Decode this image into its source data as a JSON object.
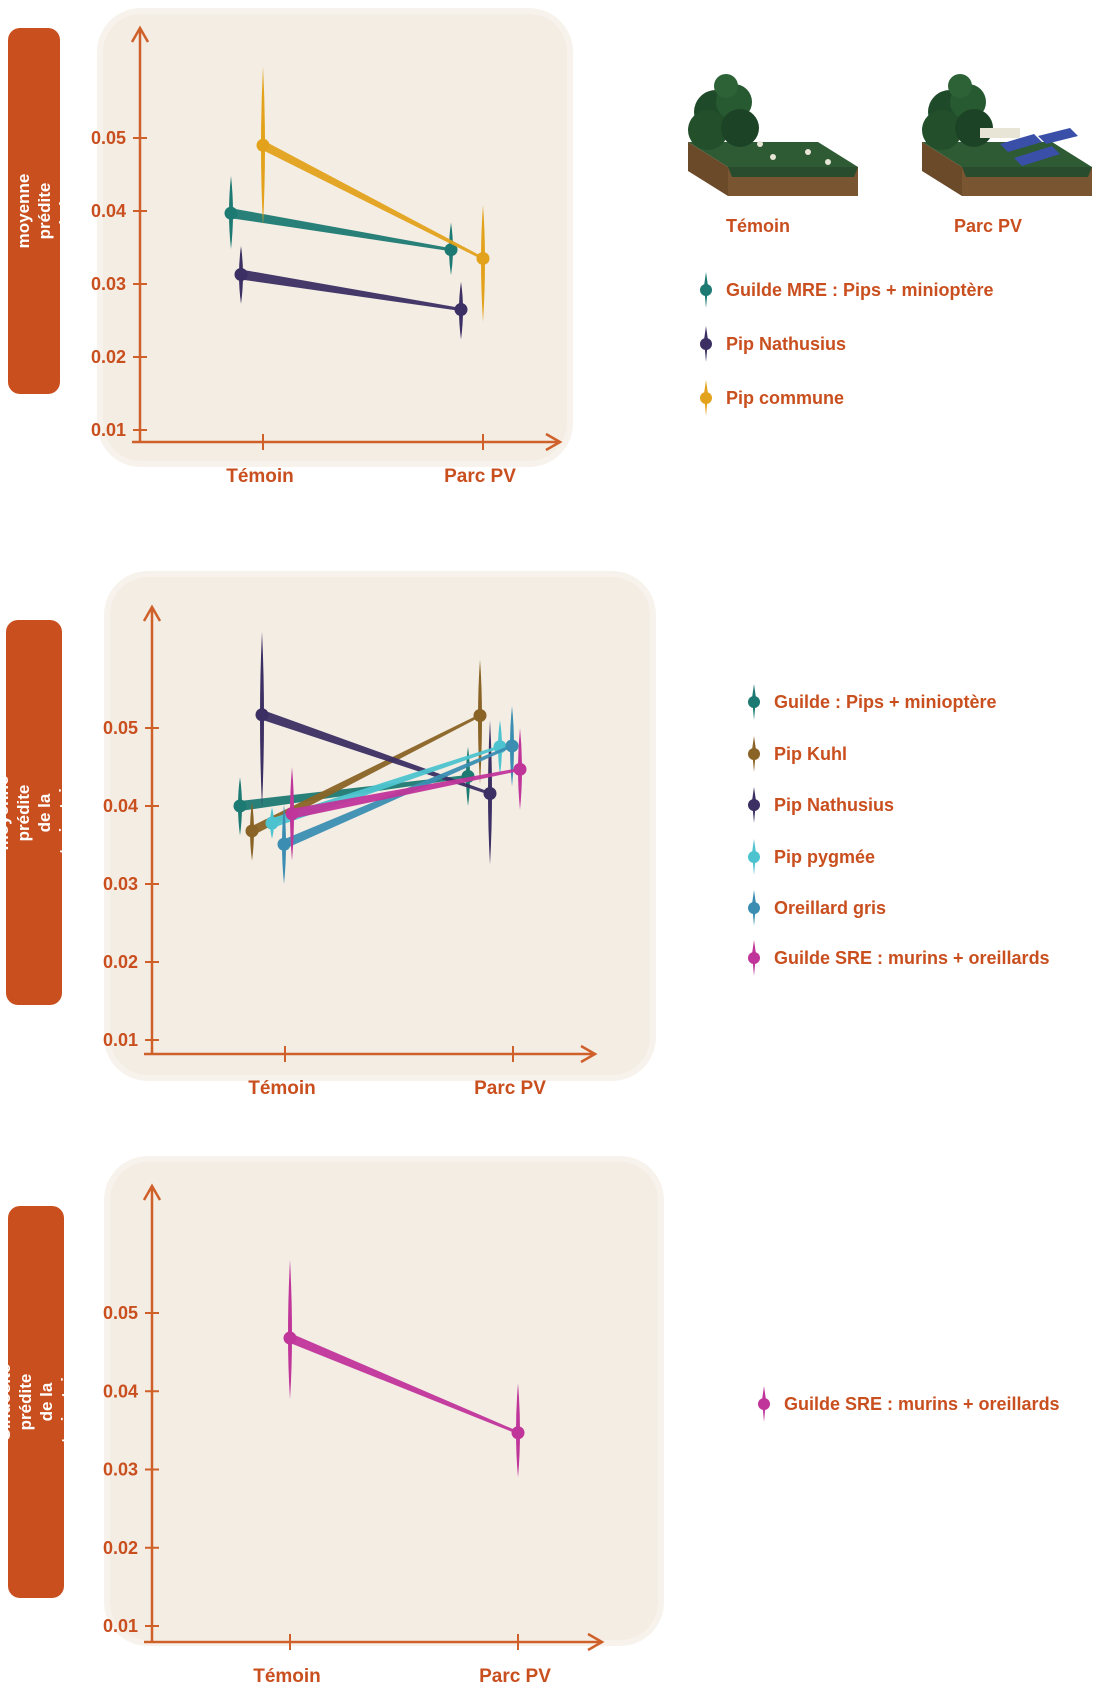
{
  "scenes": {
    "control_label": "Témoin",
    "pv_label": "Parc PV"
  },
  "chart_data": [
    {
      "type": "line",
      "ylabel": "Probabilité de buzz moyenne prédite\nde la trajectoire",
      "categories": [
        "Témoin",
        "Parc PV"
      ],
      "yticks": [
        "0.01",
        "0.02",
        "0.03",
        "0.04",
        "0.05"
      ],
      "ylim": [
        0.01,
        0.05
      ],
      "series": [
        {
          "name": "Guilde MRE : Pips + minioptère",
          "color": "#1c7a72",
          "values": [
            0.0397,
            0.0347
          ],
          "low": [
            0.0348,
            0.0312
          ],
          "high": [
            0.0448,
            0.0384
          ]
        },
        {
          "name": "Pip Nathusius",
          "color": "#3b2f63",
          "values": [
            0.0313,
            0.0265
          ],
          "low": [
            0.0273,
            0.0224
          ],
          "high": [
            0.0352,
            0.0303
          ]
        },
        {
          "name": "Pip commune",
          "color": "#e3a21b",
          "values": [
            0.049,
            0.0335
          ],
          "low": [
            0.038,
            0.0248
          ],
          "high": [
            0.0598,
            0.0408
          ]
        }
      ]
    },
    {
      "type": "line",
      "ylabel": "Vitesse moyenne prédite\nde la trajectoire (m/s)",
      "categories": [
        "Témoin",
        "Parc PV"
      ],
      "yticks": [
        "0.01",
        "0.02",
        "0.03",
        "0.04",
        "0.05"
      ],
      "ylim": [
        0.01,
        0.05
      ],
      "series": [
        {
          "name": "Guilde : Pips + minioptère",
          "color": "#1c7a72",
          "values": [
            0.04,
            0.0438
          ],
          "low": [
            0.0362,
            0.04
          ],
          "high": [
            0.0437,
            0.0476
          ]
        },
        {
          "name": "Pip Kuhl",
          "color": "#8a6426",
          "values": [
            0.0368,
            0.0516
          ],
          "low": [
            0.033,
            0.0428
          ],
          "high": [
            0.0405,
            0.0588
          ]
        },
        {
          "name": "Pip Nathusius",
          "color": "#3b2f63",
          "values": [
            0.0517,
            0.0416
          ],
          "low": [
            0.0398,
            0.0325
          ],
          "high": [
            0.0623,
            0.051
          ]
        },
        {
          "name": "Pip pygmée",
          "color": "#4cc3cf",
          "values": [
            0.0378,
            0.0476
          ],
          "low": [
            0.0358,
            0.044
          ],
          "high": [
            0.0398,
            0.051
          ]
        },
        {
          "name": "Oreillard gris",
          "color": "#3b8eb2",
          "values": [
            0.0351,
            0.0477
          ],
          "low": [
            0.03,
            0.0425
          ],
          "high": [
            0.0402,
            0.0528
          ]
        },
        {
          "name": "Guilde SRE : murins + oreillards",
          "color": "#c0359a",
          "values": [
            0.039,
            0.0447
          ],
          "low": [
            0.033,
            0.0395
          ],
          "high": [
            0.045,
            0.05
          ]
        }
      ]
    },
    {
      "type": "line",
      "ylabel": "Sinuosité prédite\nde la trajectoire",
      "categories": [
        "Témoin",
        "Parc PV"
      ],
      "yticks": [
        "0.01",
        "0.02",
        "0.03",
        "0.04",
        "0.05"
      ],
      "ylim": [
        0.01,
        0.05
      ],
      "series": [
        {
          "name": "Guilde SRE : murins + oreillards",
          "color": "#c0359a",
          "values": [
            0.0468,
            0.0347
          ],
          "low": [
            0.039,
            0.029
          ],
          "high": [
            0.0568,
            0.041
          ]
        }
      ]
    }
  ]
}
